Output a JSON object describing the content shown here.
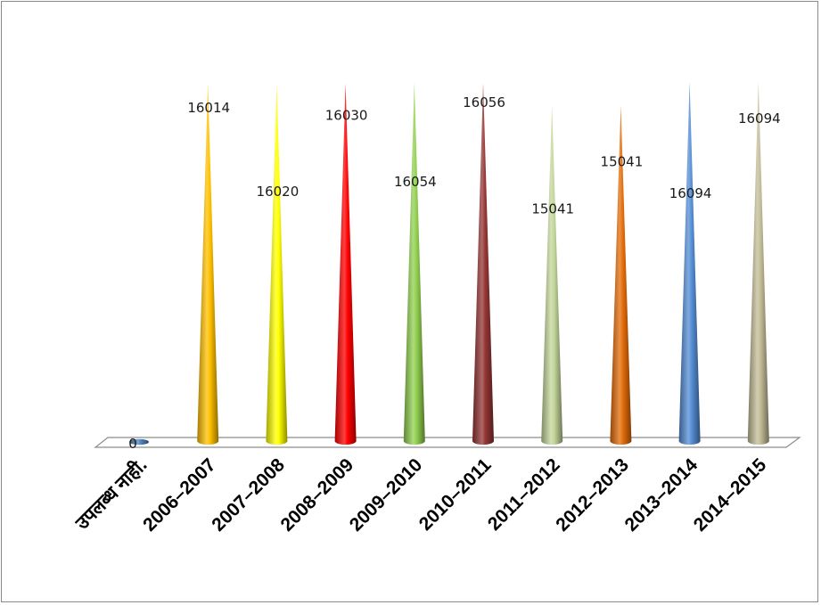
{
  "chart_data": {
    "type": "bar",
    "shape": "cone",
    "categories": [
      "उपलब्ध नाही.",
      "2006–2007",
      "2007–2008",
      "2008–2009",
      "2009–2010",
      "2010–2011",
      "2011–2012",
      "2012–2013",
      "2013–2014",
      "2014–2015"
    ],
    "values": [
      0,
      16014,
      16020,
      16030,
      16054,
      16056,
      15041,
      15041,
      16094,
      16094
    ],
    "data_labels": [
      "0",
      "16014",
      "16020",
      "16030",
      "16054",
      "16056",
      "15041",
      "15041",
      "16094",
      "16094"
    ],
    "colors": [
      "#4f81bd",
      "#ffc000",
      "#ffff00",
      "#ff0000",
      "#92d050",
      "#943634",
      "#c4d79b",
      "#e46c0a",
      "#558ed5",
      "#c4bd97"
    ],
    "title": "",
    "xlabel": "",
    "ylabel": "",
    "grid": false,
    "legend": "none"
  }
}
